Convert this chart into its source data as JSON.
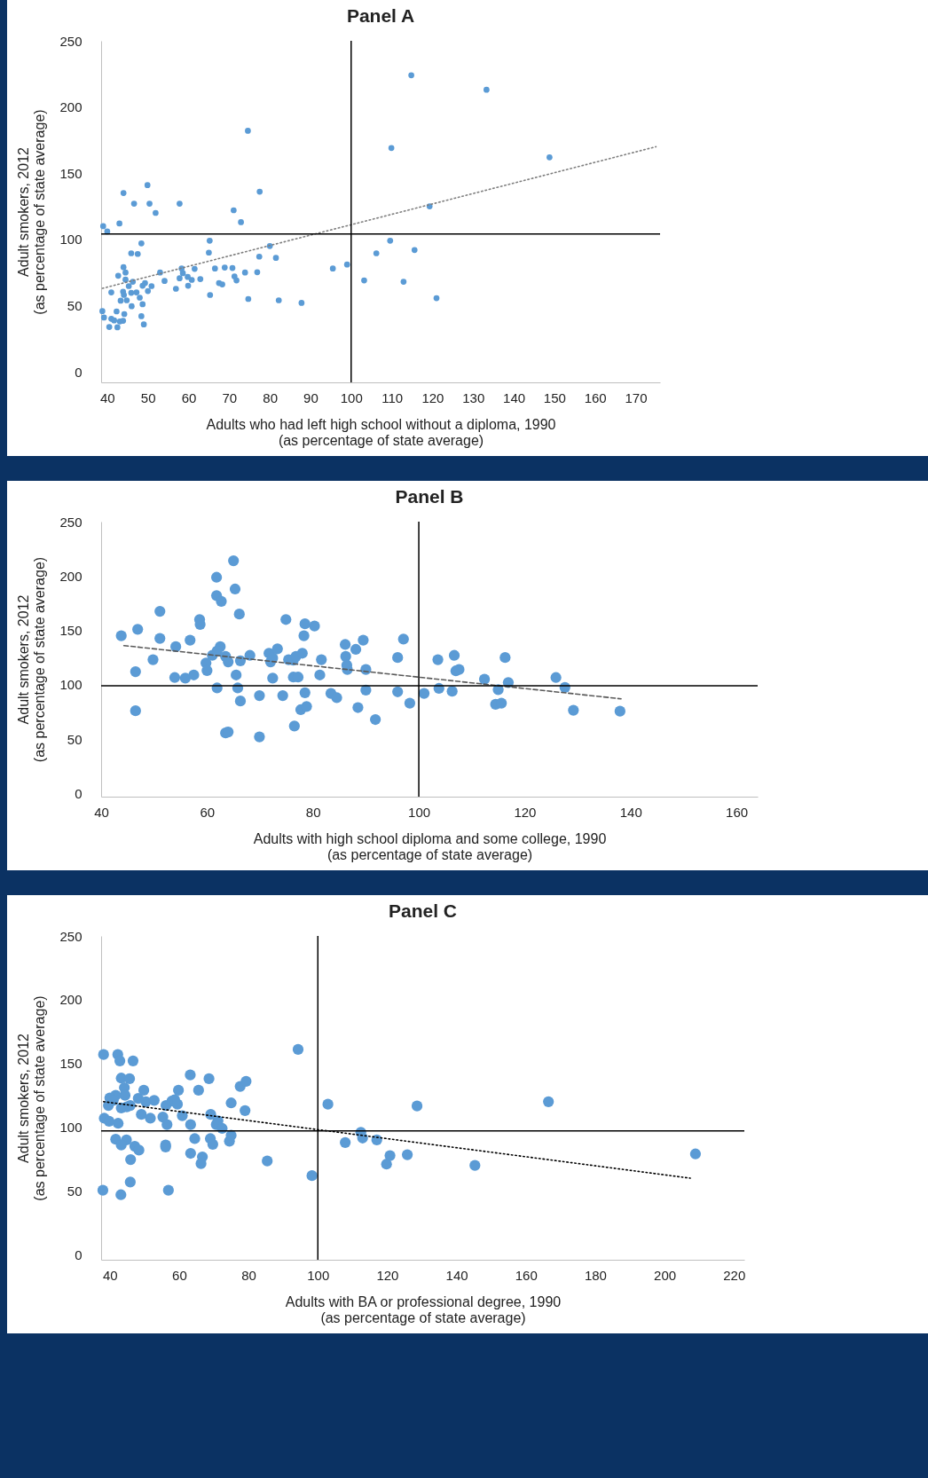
{
  "chart_data": [
    {
      "type": "scatter",
      "title": "Panel A",
      "xlabel": "Adults who had left high school without a diploma, 1990\n(as percentage of state average)",
      "ylabel": "Adult smokers, 2012\n(as percentage of state average)",
      "xlim": [
        38.5,
        176
      ],
      "xticks": [
        40,
        50,
        60,
        70,
        80,
        90,
        100,
        110,
        120,
        130,
        140,
        150,
        160,
        170
      ],
      "ylim": [
        -8,
        250
      ],
      "yticks": [
        0,
        50,
        100,
        150,
        200,
        250
      ],
      "ref_lines": [
        {
          "axis": "x",
          "value": 100,
          "color": "#000000"
        },
        {
          "axis": "y",
          "value": 104,
          "color": "#000000"
        }
      ],
      "series": [
        {
          "marker": "circle",
          "color": "#5b9bd5",
          "x": [
            39,
            40,
            43,
            44,
            46.6,
            49.9,
            50.4,
            51.9,
            57.8,
            74.6,
            71.1,
            72.9,
            77.5,
            48.4,
            45.9,
            47.5,
            65.2,
            65,
            80,
            77.4,
            81.5,
            95.5,
            99,
            44,
            44.5,
            42.7,
            44.5,
            46.3,
            45.3,
            41,
            43.9,
            44.1,
            45.9,
            47.2,
            43.3,
            44.8,
            48,
            48.7,
            46,
            44.2,
            42.3,
            38.8,
            39.2,
            41,
            41.7,
            43.1,
            43.9,
            40.5,
            42.5,
            48.4,
            49,
            48.7,
            49.3,
            50.9,
            50,
            53,
            54.1,
            56.9,
            58.3,
            58.6,
            57.8,
            59.8,
            59.9,
            61.5,
            60.8,
            62.9,
            65.3,
            66.5,
            67.5,
            68.3,
            68.9,
            70.8,
            71.3,
            71.8,
            73.9,
            76.9,
            74.7,
            82.2,
            87.8,
            103.2,
            106.2,
            109.6,
            109.9,
            114.8,
            133.3,
            148.8,
            119.3,
            115.6,
            112.9,
            121
          ],
          "values": [
            110,
            106,
            112,
            135,
            127,
            141,
            127,
            120,
            127,
            182,
            122,
            113,
            136,
            97,
            89.5,
            89,
            99,
            90,
            95,
            87,
            86,
            78,
            81,
            79,
            75,
            72.5,
            69.6,
            68,
            64.7,
            60,
            60.5,
            58,
            59.6,
            60,
            53.7,
            54,
            56,
            51,
            49.5,
            43.6,
            45.6,
            45.8,
            41,
            40,
            38.8,
            38,
            38.5,
            33.8,
            33.6,
            42,
            35.8,
            65,
            67,
            64.7,
            61,
            75,
            68.6,
            62.7,
            78,
            74.5,
            70.6,
            71.6,
            65,
            77.7,
            69.4,
            70,
            58,
            78,
            67,
            66,
            78.7,
            78.4,
            72,
            69,
            75,
            75.2,
            55,
            54,
            52,
            69,
            89.5,
            99,
            169,
            224,
            213,
            162,
            125,
            92,
            68,
            55.6
          ]
        },
        {
          "type": "line",
          "marker": "none",
          "color": "#7f7f7f",
          "line_style": "dotted",
          "x": [
            38.8,
            175
          ],
          "values": [
            63,
            170
          ]
        }
      ]
    },
    {
      "type": "scatter",
      "title": "Panel B",
      "xlabel": "Adults with high school diploma and some college, 1990\n(as percentage of state average)",
      "ylabel": "Adult smokers, 2012\n(as percentage of state average)",
      "xlim": [
        40,
        164
      ],
      "xticks": [
        40,
        60,
        80,
        100,
        120,
        140,
        160
      ],
      "ylim": [
        -3,
        250
      ],
      "yticks": [
        0,
        50,
        100,
        150,
        200,
        250
      ],
      "ref_lines": [
        {
          "axis": "x",
          "value": 100,
          "color": "#000000"
        },
        {
          "axis": "y",
          "value": 99,
          "color": "#000000"
        }
      ],
      "series": [
        {
          "marker": "circle",
          "color": "#5b9bd5",
          "x": [
            43.8,
            46.9,
            51.1,
            51.1,
            46.5,
            46.5,
            49.8,
            54.1,
            53.9,
            55.9,
            56.8,
            57.5,
            58.6,
            58.7,
            59.8,
            60,
            61,
            61.8,
            61.8,
            62.7,
            62.5,
            61.9,
            61.9,
            63.5,
            64,
            65,
            65.3,
            66.1,
            66.3,
            65.5,
            65.8,
            66.3,
            63.5,
            64,
            68.1,
            69.9,
            69.9,
            71.7,
            72,
            72.4,
            72.4,
            73.3,
            74.3,
            74.9,
            75.4,
            76.3,
            76.8,
            76.3,
            77.2,
            76.5,
            77.7,
            78,
            78.3,
            78.5,
            78.8,
            78.5,
            80.3,
            81.3,
            81.6,
            83.4,
            84.5,
            86.2,
            86.4,
            86.5,
            86.1,
            88.1,
            88.5,
            89.5,
            90,
            90,
            91.8,
            96,
            96,
            97.1,
            98.3,
            101,
            103.6,
            103.8,
            106.3,
            106.7,
            107,
            107.6,
            112.4,
            114.5,
            115.6,
            115,
            116.3,
            116.9,
            125.9,
            127.6,
            129.2,
            138
          ],
          "values": [
            145,
            151,
            167.5,
            142.6,
            112,
            76,
            123,
            135,
            106.6,
            106,
            141,
            109,
            160,
            155.4,
            120,
            113,
            127,
            198.8,
            182,
            176.7,
            135,
            131,
            97,
            126,
            121,
            214,
            188,
            165,
            122,
            109,
            97,
            85,
            55.6,
            56.5,
            127,
            90,
            52,
            129,
            121,
            124.6,
            106,
            133,
            90,
            160,
            123,
            122.5,
            126,
            107,
            107,
            62,
            77,
            129,
            145,
            156,
            80,
            92.6,
            154,
            109,
            123,
            92,
            88,
            126,
            118,
            114,
            137,
            132.5,
            79,
            141,
            114,
            95,
            68,
            125,
            93.5,
            142,
            83,
            92,
            123,
            96.6,
            94,
            127,
            112.7,
            114,
            105,
            82,
            83,
            95.5,
            125,
            102,
            106.6,
            97.5,
            76.5,
            75.6
          ]
        },
        {
          "type": "line",
          "marker": "none",
          "color": "#595959",
          "line_style": "dashed",
          "x": [
            44.3,
            138.2
          ],
          "values": [
            136,
            87
          ]
        }
      ]
    },
    {
      "type": "scatter",
      "title": "Panel C",
      "xlabel": "Adults with BA or professional degree, 1990\n(as percentage of state average)",
      "ylabel": "Adult smokers, 2012\n(as percentage of state average)",
      "xlim": [
        37.5,
        223
      ],
      "xticks": [
        40,
        60,
        80,
        100,
        120,
        140,
        160,
        180,
        200,
        220
      ],
      "ylim": [
        -4,
        250
      ],
      "yticks": [
        0,
        50,
        100,
        150,
        200,
        250
      ],
      "ref_lines": [
        {
          "axis": "x",
          "value": 100,
          "color": "#000000"
        },
        {
          "axis": "y",
          "value": 97,
          "color": "#000000"
        }
      ],
      "series": [
        {
          "marker": "circle",
          "color": "#5b9bd5",
          "x": [
            38.2,
            42.3,
            42.9,
            46.7,
            43.3,
            45.7,
            44.2,
            44.4,
            41.7,
            40,
            39.6,
            41,
            43.3,
            44.9,
            45.9,
            48.2,
            49.8,
            50.4,
            52.8,
            49.1,
            51.7,
            38.4,
            39.8,
            42.4,
            41.7,
            44.8,
            43.3,
            47.2,
            48.4,
            46,
            45.9,
            38,
            43.2,
            56.9,
            55.3,
            56.2,
            56.5,
            56.1,
            56.1,
            57.9,
            58.7,
            59.5,
            59.8,
            60.9,
            63.2,
            63.3,
            63.3,
            64.5,
            65.6,
            66.7,
            66.3,
            68.6,
            69.1,
            69,
            69.7,
            70.7,
            71.2,
            72.4,
            74.5,
            75,
            75,
            77.6,
            79.3,
            79,
            85.4,
            94.3,
            98.3,
            102.9,
            107.9,
            112.4,
            112.9,
            117,
            119.8,
            120.8,
            125.8,
            128.6,
            145.3,
            166.5,
            208.9
          ],
          "values": [
            157,
            157,
            152,
            152,
            138.5,
            138,
            131,
            125,
            125,
            123,
            117,
            121,
            115,
            116,
            117,
            122.6,
            129,
            120,
            121,
            110,
            107,
            107,
            104.6,
            103,
            90.5,
            90,
            86,
            85,
            82,
            74.6,
            57,
            50.5,
            47,
            50.5,
            108,
            117,
            102,
            86,
            84.5,
            120.5,
            121.5,
            118,
            129,
            109,
            141,
            102,
            79.5,
            91,
            129,
            76.7,
            71.4,
            138,
            110,
            91,
            86.6,
            102,
            105,
            99,
            89,
            119,
            93.6,
            132,
            136,
            113,
            73.5,
            161,
            62,
            118,
            88,
            96,
            91.5,
            90,
            71,
            77.7,
            78.4,
            116.6,
            70,
            120,
            79
          ]
        },
        {
          "type": "line",
          "marker": "none",
          "color": "#000000",
          "line_style": "dotted",
          "x": [
            38.2,
            207.4
          ],
          "values": [
            120,
            60
          ]
        }
      ]
    }
  ]
}
